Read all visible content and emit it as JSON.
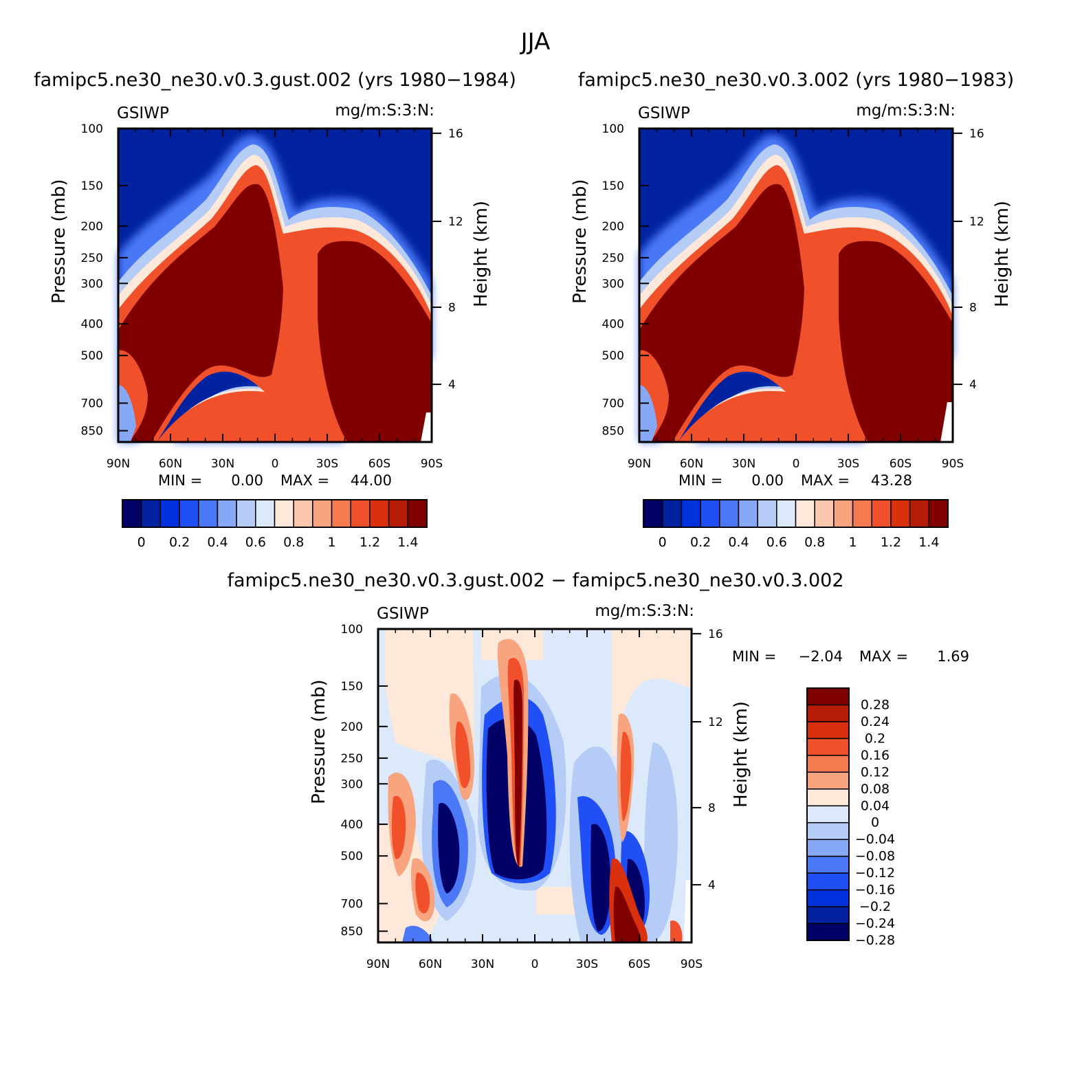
{
  "page_title": "JJA",
  "palette": {
    "cb16": [
      "#000066",
      "#00229e",
      "#0033dd",
      "#1f4ff5",
      "#4a78f7",
      "#86a8f5",
      "#b5ccf7",
      "#dbe9fb",
      "#fde8da",
      "#fbc8ad",
      "#f7a47f",
      "#f57a4f",
      "#f0502a",
      "#d9300d",
      "#b51c08",
      "#800000"
    ],
    "diff16": [
      "#000066",
      "#00229e",
      "#0033dd",
      "#1f4ff5",
      "#4a78f7",
      "#86a8f5",
      "#b5ccf7",
      "#dbe9fb",
      "#fde8da",
      "#f7a47f",
      "#f57a4f",
      "#f0502a",
      "#d9300d",
      "#b51c08",
      "#800000"
    ]
  },
  "chart_data": [
    {
      "type": "heatmap",
      "title": "famipc5.ne30_ne30.v0.3.gust.002 (yrs 1980−1984)",
      "field": "GSIWP",
      "units": "mg/m:S:3:N:",
      "xlabel": "",
      "ylabel": "Pressure (mb)",
      "y2label": "Height (km)",
      "x_ticks": [
        "90N",
        "60N",
        "30N",
        "0",
        "30S",
        "60S",
        "90S"
      ],
      "y_ticks": [
        "100",
        "150",
        "200",
        "250",
        "300",
        "400",
        "500",
        "700",
        "850"
      ],
      "y2_ticks": [
        "16",
        "12",
        "8",
        "4"
      ],
      "stats": {
        "min_label": "MIN =",
        "min": "0.00",
        "max_label": "MAX =",
        "max": "44.00"
      },
      "colorbar": {
        "orientation": "horizontal",
        "labels": [
          "0",
          "0.2",
          "0.4",
          "0.6",
          "0.8",
          "1",
          "1.2",
          "1.4"
        ]
      }
    },
    {
      "type": "heatmap",
      "title": "famipc5.ne30_ne30.v0.3.002 (yrs 1980−1983)",
      "field": "GSIWP",
      "units": "mg/m:S:3:N:",
      "xlabel": "",
      "ylabel": "Pressure (mb)",
      "y2label": "Height (km)",
      "x_ticks": [
        "90N",
        "60N",
        "30N",
        "0",
        "30S",
        "60S",
        "90S"
      ],
      "y_ticks": [
        "100",
        "150",
        "200",
        "250",
        "300",
        "400",
        "500",
        "700",
        "850"
      ],
      "y2_ticks": [
        "16",
        "12",
        "8",
        "4"
      ],
      "stats": {
        "min_label": "MIN =",
        "min": "0.00",
        "max_label": "MAX =",
        "max": "43.28"
      },
      "colorbar": {
        "orientation": "horizontal",
        "labels": [
          "0",
          "0.2",
          "0.4",
          "0.6",
          "0.8",
          "1",
          "1.2",
          "1.4"
        ]
      }
    },
    {
      "type": "heatmap",
      "title": "famipc5.ne30_ne30.v0.3.gust.002 − famipc5.ne30_ne30.v0.3.002",
      "field": "GSIWP",
      "units": "mg/m:S:3:N:",
      "xlabel": "",
      "ylabel": "Pressure (mb)",
      "y2label": "Height (km)",
      "x_ticks": [
        "90N",
        "60N",
        "30N",
        "0",
        "30S",
        "60S",
        "90S"
      ],
      "y_ticks": [
        "100",
        "150",
        "200",
        "250",
        "300",
        "400",
        "500",
        "700",
        "850"
      ],
      "y2_ticks": [
        "16",
        "12",
        "8",
        "4"
      ],
      "stats": {
        "min_label": "MIN =",
        "min": "−2.04",
        "max_label": "MAX =",
        "max": "1.69"
      },
      "colorbar": {
        "orientation": "vertical",
        "labels": [
          "0.28",
          "0.24",
          "0.2",
          "0.16",
          "0.12",
          "0.08",
          "0.04",
          "0",
          "−0.04",
          "−0.08",
          "−0.12",
          "−0.16",
          "−0.2",
          "−0.24",
          "−0.28"
        ]
      }
    }
  ]
}
